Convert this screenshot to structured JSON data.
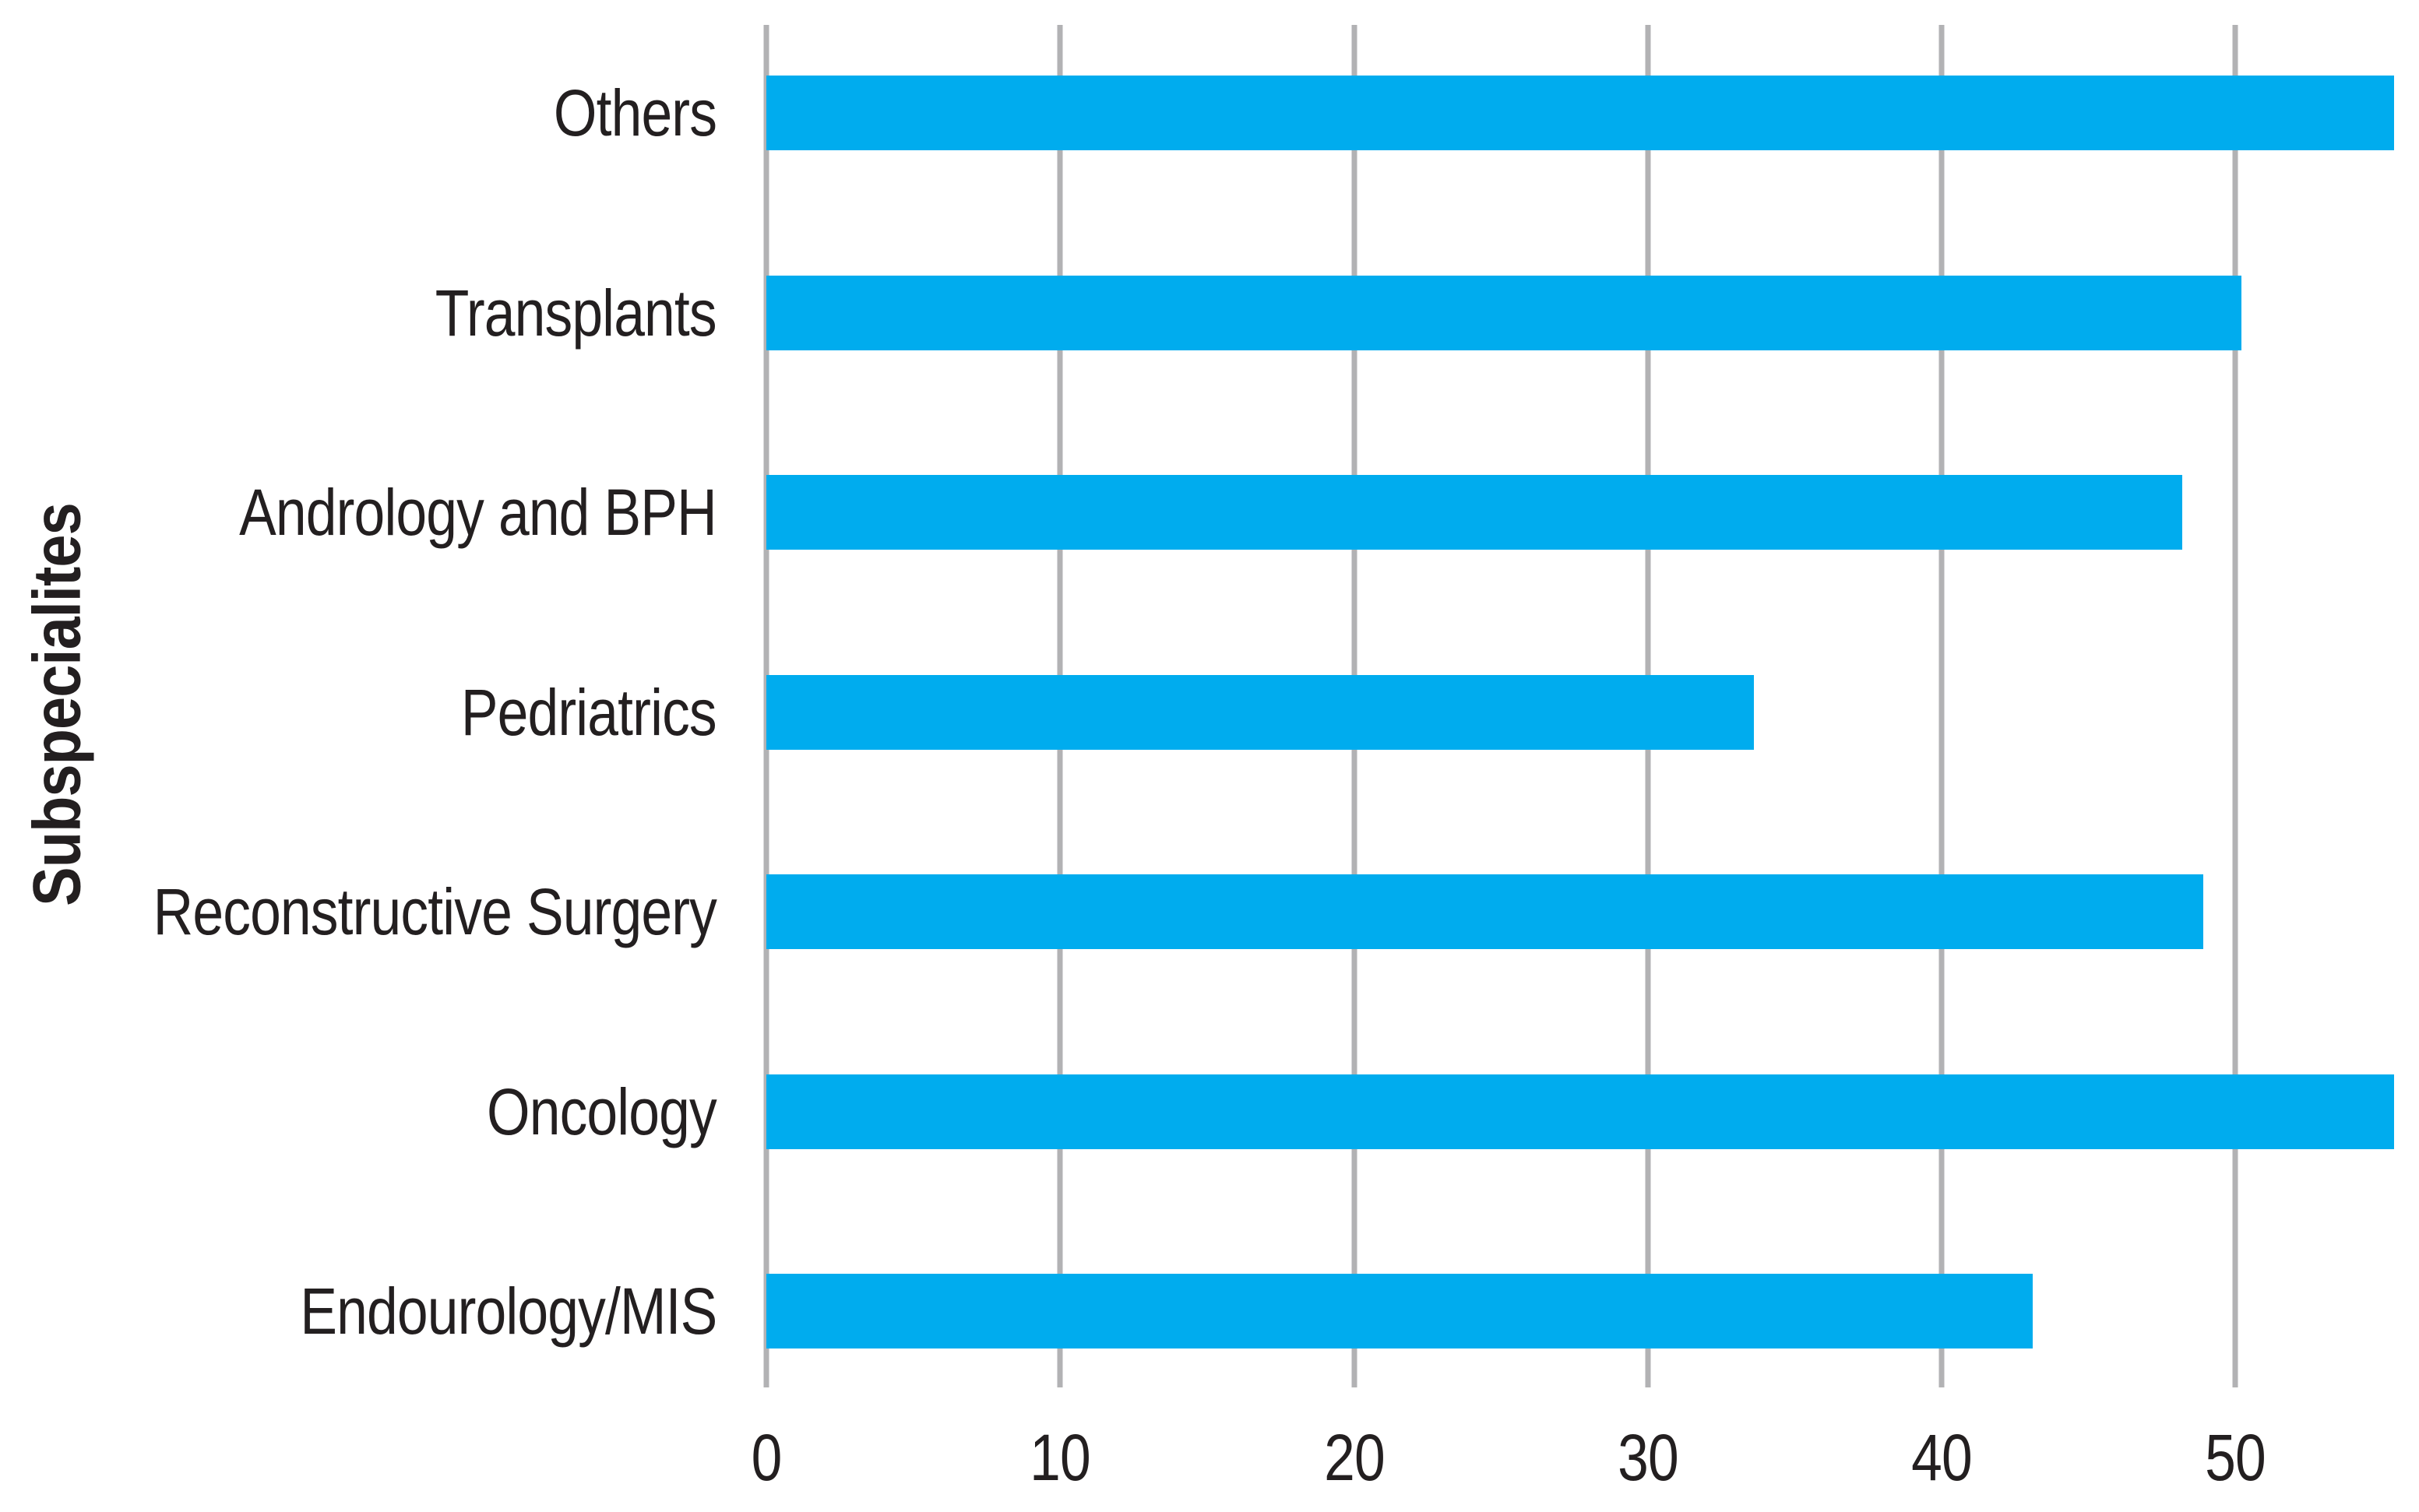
{
  "chart_data": {
    "type": "bar",
    "orientation": "horizontal",
    "title": "",
    "xlabel": "",
    "ylabel": "Subspecialites",
    "categories": [
      "Others",
      "Transplants",
      "Andrology and BPH",
      "Pedriatrics",
      "Reconstructive Surgery",
      "Oncology",
      "Endourology/MIS"
    ],
    "values": [
      55.4,
      50.2,
      48.2,
      33.6,
      48.9,
      55.4,
      43.1
    ],
    "x_ticks": [
      0,
      10,
      20,
      30,
      40,
      50
    ],
    "x_tick_labels": [
      "0",
      "10",
      "20",
      "30",
      "40",
      "50"
    ],
    "xlim": [
      0,
      55.4
    ],
    "grid": "vertical-gridlines-on",
    "legend": "none",
    "bar_color": "#00ACEE",
    "gridline_color": "#B2B2B4",
    "text_color": "#231F20"
  }
}
